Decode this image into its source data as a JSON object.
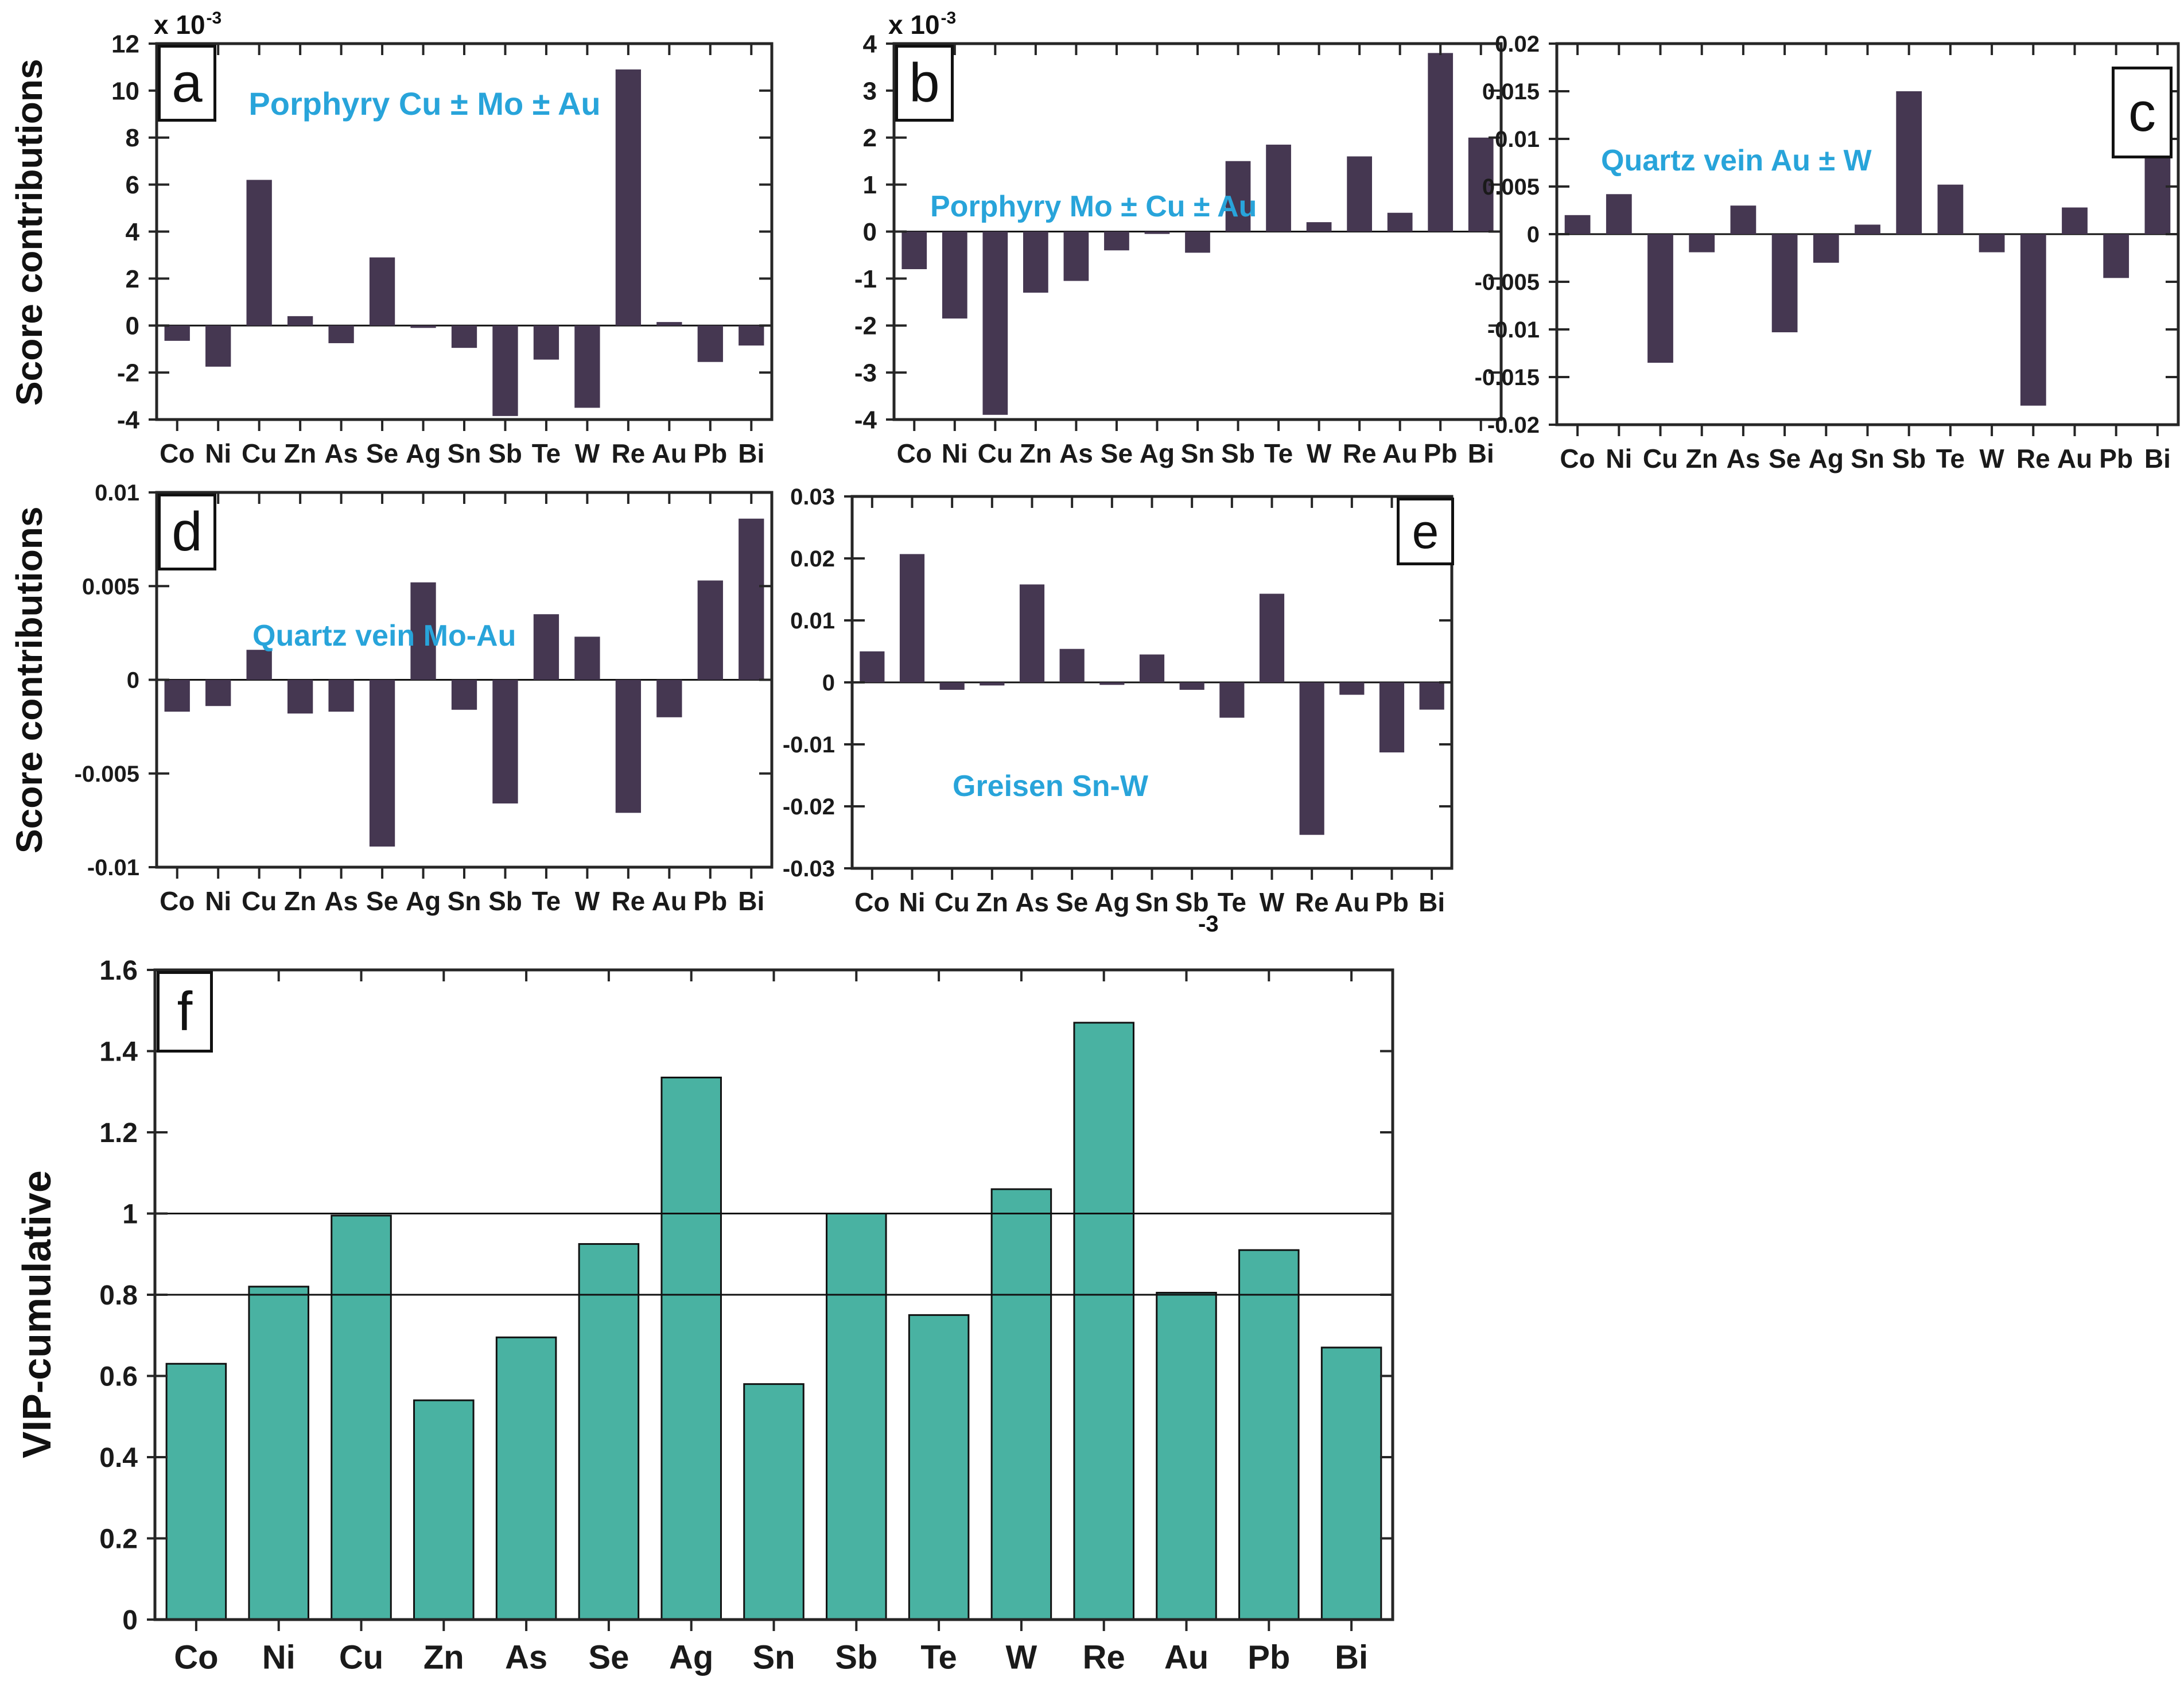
{
  "labels": {
    "score_contributions": "Score contributions",
    "vip_cumulative": "VIP-cumulative",
    "stray_exponent": "-3"
  },
  "colors": {
    "bar_dark": "#453751",
    "bar_teal": "#49b2a2",
    "title_blue": "#28a4da",
    "axis": "#262626"
  },
  "chart_data": [
    {
      "id": "a",
      "type": "bar",
      "panel_letter": "a",
      "letter_corner": "top-left",
      "title": "Porphyry Cu ± Mo ± Au",
      "scale_base": "x 10",
      "scale_exp": "-3",
      "unit_multiplier": "1e-3",
      "ylabel": "Score contributions",
      "categories": [
        "Co",
        "Ni",
        "Cu",
        "Zn",
        "As",
        "Se",
        "Ag",
        "Sn",
        "Sb",
        "Te",
        "W",
        "Re",
        "Au",
        "Pb",
        "Bi"
      ],
      "values": [
        -0.65,
        -1.75,
        6.2,
        0.4,
        -0.75,
        2.9,
        -0.1,
        -0.95,
        -3.85,
        -1.45,
        -3.5,
        10.9,
        0.15,
        -1.55,
        -0.85
      ],
      "ylim": [
        -4,
        12
      ],
      "yticks": [
        -4,
        -2,
        0,
        2,
        4,
        6,
        8,
        10,
        12
      ],
      "ytick_labels": [
        "-4",
        "-2",
        "0",
        "2",
        "4",
        "6",
        "8",
        "10",
        "12"
      ],
      "bar_color": "#453751",
      "grid": false
    },
    {
      "id": "b",
      "type": "bar",
      "panel_letter": "b",
      "letter_corner": "top-left",
      "title": "Porphyry Mo ± Cu ± Au",
      "scale_base": "x 10",
      "scale_exp": "-3",
      "unit_multiplier": "1e-3",
      "ylabel": null,
      "categories": [
        "Co",
        "Ni",
        "Cu",
        "Zn",
        "As",
        "Se",
        "Ag",
        "Sn",
        "Sb",
        "Te",
        "W",
        "Re",
        "Au",
        "Pb",
        "Bi"
      ],
      "values": [
        -0.8,
        -1.85,
        -3.9,
        -1.3,
        -1.05,
        -0.4,
        -0.05,
        -0.45,
        1.5,
        1.85,
        0.2,
        1.6,
        0.4,
        3.8,
        2.0
      ],
      "ylim": [
        -4,
        4
      ],
      "yticks": [
        -4,
        -3,
        -2,
        -1,
        0,
        1,
        2,
        3,
        4
      ],
      "ytick_labels": [
        "-4",
        "-3",
        "-2",
        "-1",
        "0",
        "1",
        "2",
        "3",
        "4"
      ],
      "bar_color": "#453751",
      "grid": false
    },
    {
      "id": "c",
      "type": "bar",
      "panel_letter": "c",
      "letter_corner": "top-right",
      "title": "Quartz vein Au ± W",
      "ylabel": null,
      "categories": [
        "Co",
        "Ni",
        "Cu",
        "Zn",
        "As",
        "Se",
        "Ag",
        "Sn",
        "Sb",
        "Te",
        "W",
        "Re",
        "Au",
        "Pb",
        "Bi"
      ],
      "values": [
        0.002,
        0.0042,
        -0.0135,
        -0.0019,
        0.003,
        -0.0103,
        -0.003,
        0.001,
        0.015,
        0.0052,
        -0.0019,
        -0.018,
        0.0028,
        -0.0046,
        0.0081
      ],
      "ylim": [
        -0.02,
        0.02
      ],
      "yticks": [
        -0.02,
        -0.015,
        -0.01,
        -0.005,
        0,
        0.005,
        0.01,
        0.015,
        0.02
      ],
      "ytick_labels": [
        "-0.02",
        "-0.015",
        "-0.01",
        "-0.005",
        "0",
        "0.005",
        "0.01",
        "0.015",
        "0.02"
      ],
      "bar_color": "#453751",
      "grid": false
    },
    {
      "id": "d",
      "type": "bar",
      "panel_letter": "d",
      "letter_corner": "top-left",
      "title": "Quartz vein Mo-Au",
      "ylabel": "Score contributions",
      "categories": [
        "Co",
        "Ni",
        "Cu",
        "Zn",
        "As",
        "Se",
        "Ag",
        "Sn",
        "Sb",
        "Te",
        "W",
        "Re",
        "Au",
        "Pb",
        "Bi"
      ],
      "values": [
        -0.0017,
        -0.0014,
        0.0016,
        -0.0018,
        -0.0017,
        -0.0089,
        0.0052,
        -0.0016,
        -0.0066,
        0.0035,
        0.0023,
        -0.0071,
        -0.002,
        0.0053,
        0.0086
      ],
      "ylim": [
        -0.01,
        0.01
      ],
      "yticks": [
        -0.01,
        -0.005,
        0,
        0.005,
        0.01
      ],
      "ytick_labels": [
        "-0.01",
        "-0.005",
        "0",
        "0.005",
        "0.01"
      ],
      "bar_color": "#453751",
      "grid": false
    },
    {
      "id": "e",
      "type": "bar",
      "panel_letter": "e",
      "letter_corner": "top-right",
      "title": "Greisen Sn-W",
      "ylabel": null,
      "categories": [
        "Co",
        "Ni",
        "Cu",
        "Zn",
        "As",
        "Se",
        "Ag",
        "Sn",
        "Sb",
        "Te",
        "W",
        "Re",
        "Au",
        "Pb",
        "Bi"
      ],
      "values": [
        0.005,
        0.0207,
        -0.0012,
        -0.0005,
        0.0158,
        0.0054,
        -0.0004,
        0.0045,
        -0.0012,
        -0.0057,
        0.0143,
        -0.0246,
        -0.002,
        -0.0113,
        -0.0044
      ],
      "ylim": [
        -0.03,
        0.03
      ],
      "yticks": [
        -0.03,
        -0.02,
        -0.01,
        0,
        0.01,
        0.02,
        0.03
      ],
      "ytick_labels": [
        "-0.03",
        "-0.02",
        "-0.01",
        "0",
        "0.01",
        "0.02",
        "0.03"
      ],
      "bar_color": "#453751",
      "grid": false
    },
    {
      "id": "f",
      "type": "bar",
      "panel_letter": "f",
      "letter_corner": "top-left",
      "title": "",
      "ylabel": "VIP-cumulative",
      "categories": [
        "Co",
        "Ni",
        "Cu",
        "Zn",
        "As",
        "Se",
        "Ag",
        "Sn",
        "Sb",
        "Te",
        "W",
        "Re",
        "Au",
        "Pb",
        "Bi"
      ],
      "values": [
        0.63,
        0.82,
        0.995,
        0.54,
        0.695,
        0.925,
        1.335,
        0.58,
        1.0,
        0.75,
        1.06,
        1.47,
        0.805,
        0.91,
        0.67
      ],
      "ylim": [
        0,
        1.6
      ],
      "yticks": [
        0,
        0.2,
        0.4,
        0.6,
        0.8,
        1,
        1.2,
        1.4,
        1.6
      ],
      "ytick_labels": [
        "0",
        "0.2",
        "0.4",
        "0.6",
        "0.8",
        "1",
        "1.2",
        "1.4",
        "1.6"
      ],
      "ref_lines": [
        0.8,
        1
      ],
      "bar_color": "#49b2a2",
      "bar_edge": "#111111",
      "grid": false
    }
  ]
}
